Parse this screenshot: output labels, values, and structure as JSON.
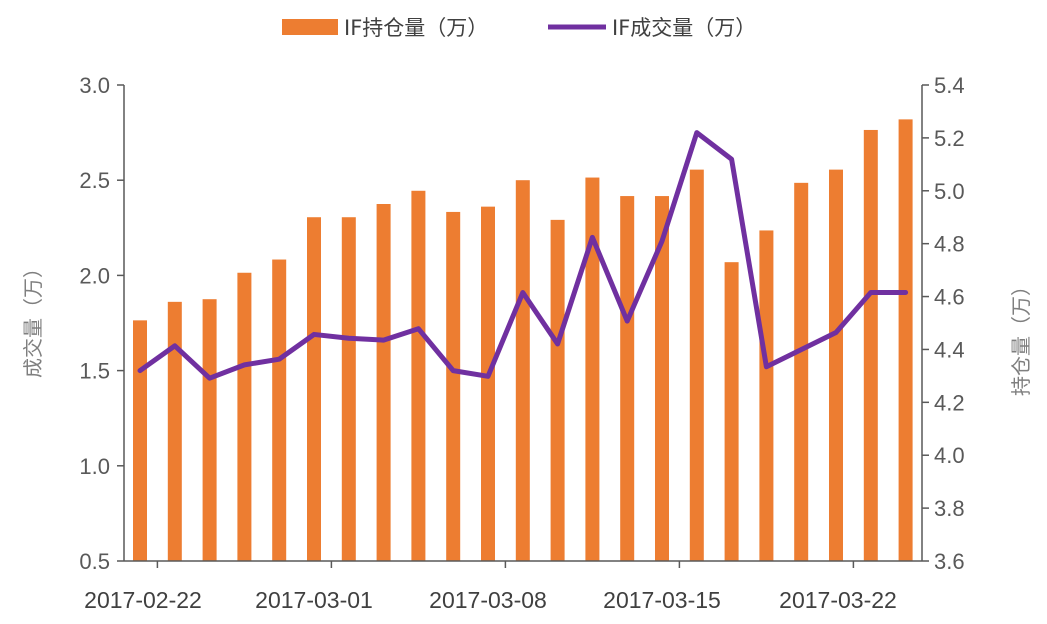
{
  "chart_data": {
    "type": "bar+line",
    "legend_position": "top",
    "grid": false,
    "x_tick_labels": [
      "2017-02-22",
      "2017-03-01",
      "2017-03-08",
      "2017-03-15",
      "2017-03-22"
    ],
    "y_left": {
      "label": "成交量（万）",
      "ylim": [
        0.5,
        3.0
      ],
      "ticks": [
        "0.5",
        "1.0",
        "1.5",
        "2.0",
        "2.5",
        "3.0"
      ]
    },
    "y_right": {
      "label": "持仓量（万）",
      "ylim": [
        3.6,
        5.4
      ],
      "ticks": [
        "3.6",
        "3.8",
        "4.0",
        "4.2",
        "4.4",
        "4.6",
        "4.8",
        "5.0",
        "5.2",
        "5.4"
      ]
    },
    "series": [
      {
        "name": "IF持仓量（万）",
        "type": "bar",
        "axis": "right",
        "color": "#ED7D31",
        "values": [
          4.51,
          4.58,
          4.59,
          4.69,
          4.74,
          4.9,
          4.9,
          4.95,
          5.0,
          4.92,
          4.94,
          5.04,
          4.89,
          5.05,
          4.98,
          4.98,
          5.08,
          4.73,
          4.85,
          5.03,
          5.08,
          5.23,
          5.27
        ]
      },
      {
        "name": "IF成交量（万）",
        "type": "line",
        "axis": "left",
        "color": "#7030A0",
        "values": [
          1.5,
          1.63,
          1.46,
          1.53,
          1.56,
          1.69,
          1.67,
          1.66,
          1.72,
          1.5,
          1.47,
          1.91,
          1.64,
          2.2,
          1.76,
          2.18,
          2.75,
          2.61,
          1.52,
          1.61,
          1.7,
          1.91,
          1.91
        ]
      }
    ]
  }
}
